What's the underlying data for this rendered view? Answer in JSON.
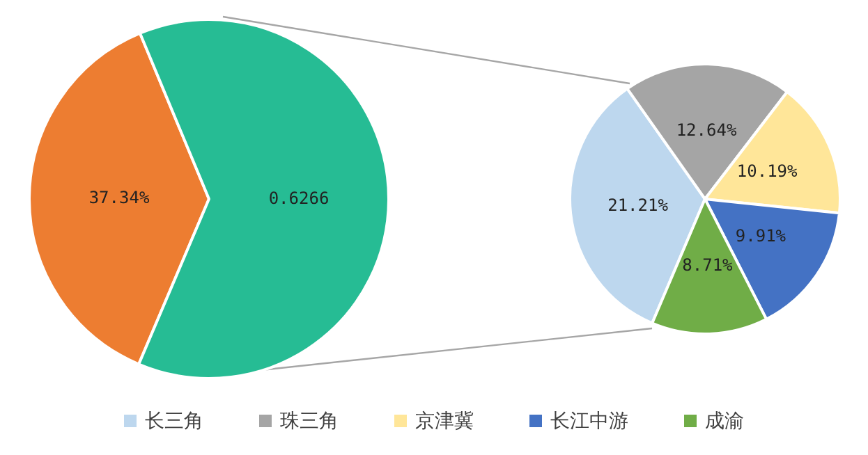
{
  "chart_data": [
    {
      "type": "pie",
      "categories": [
        null,
        null
      ],
      "values": [
        0.3734,
        0.6266
      ],
      "colors": [
        "#ed7d31",
        "#26bc94"
      ],
      "value_labels": [
        "37.34%",
        "0.6266"
      ]
    },
    {
      "type": "pie",
      "categories": [
        "长三角",
        "珠三角",
        "京津冀",
        "长江中游",
        "成渝"
      ],
      "values": [
        21.21,
        12.64,
        10.19,
        9.91,
        8.71
      ],
      "colors": [
        "#bdd7ee",
        "#a5a5a5",
        "#ffe699",
        "#4472c4",
        "#70ad47"
      ],
      "value_labels": [
        "21.21%",
        "12.64%",
        "10.19%",
        "9.91%",
        "8.71%"
      ],
      "legend": "bottom"
    }
  ]
}
